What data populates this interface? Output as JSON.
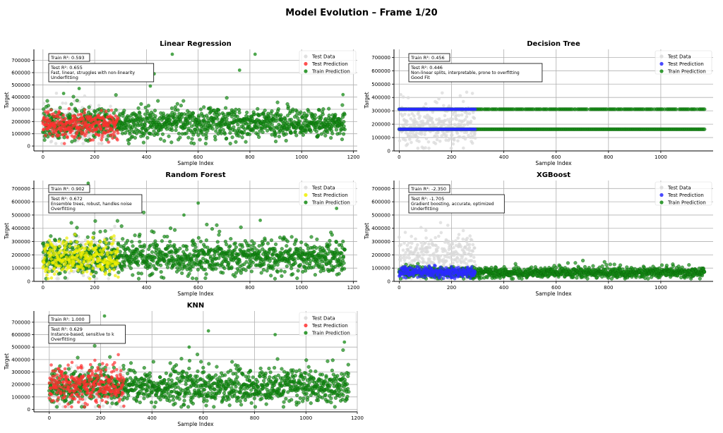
{
  "figure": {
    "title": "Model Evolution – Frame 1/20"
  },
  "colors": {
    "test_data": "#d9d9d9",
    "train_prediction": "#138a13",
    "grid": "#b0b0b0",
    "axis": "#000000"
  },
  "chart_data": [
    {
      "type": "scatter",
      "title": "Linear Regression",
      "xlabel": "Sample Index",
      "ylabel": "Target",
      "xlim": [
        -35,
        1215
      ],
      "ylim": [
        -40000,
        790000
      ],
      "xticks": [
        0,
        200,
        400,
        600,
        800,
        1000,
        1200
      ],
      "yticks": [
        0,
        100000,
        200000,
        300000,
        400000,
        500000,
        600000,
        700000
      ],
      "grid": true,
      "legend_position": "top-right",
      "test_prediction_color": "#ff3030",
      "legend": [
        "Test Data",
        "Test Prediction",
        "Train Prediction"
      ],
      "annotations": {
        "train_r2": "Train R²: 0.593",
        "test_r2": "Test R²: 0.655",
        "description": "Fast, linear, struggles with non-linearity",
        "status": "Underfitting"
      },
      "series_summary": {
        "test_data": {
          "n_samples": 292,
          "x_range": [
            0,
            291
          ],
          "center": 170000,
          "spread": 70000
        },
        "test_prediction": {
          "n_samples": 292,
          "x_range": [
            0,
            291
          ],
          "center": 170000,
          "spread": 55000
        },
        "train_prediction": {
          "n_samples": 1168,
          "x_range": [
            0,
            1167
          ],
          "center": 180000,
          "spread": 60000
        }
      },
      "highlight_points": [
        [
          80,
          430000
        ],
        [
          140,
          470000
        ],
        [
          430,
          590000
        ],
        [
          500,
          750000
        ],
        [
          760,
          620000
        ],
        [
          820,
          750000
        ],
        [
          1160,
          420000
        ],
        [
          415,
          490000
        ]
      ]
    },
    {
      "type": "scatter",
      "title": "Decision Tree",
      "xlabel": "Sample Index",
      "ylabel": "Target",
      "xlim": [
        -20,
        1200
      ],
      "ylim": [
        0,
        760000
      ],
      "xticks": [
        0,
        200,
        400,
        600,
        800,
        1000
      ],
      "yticks": [
        0,
        100000,
        200000,
        300000,
        400000,
        500000,
        600000,
        700000
      ],
      "grid": true,
      "legend_position": "top-right",
      "test_prediction_color": "#2a2aff",
      "legend": [
        "Test Data",
        "Test Prediction",
        "Train Prediction"
      ],
      "annotations": {
        "train_r2": "Train R²: 0.456",
        "test_r2": "Test R²: 0.446",
        "description": "Non-linear splits, interpretable, prone to overfitting",
        "status": "Good Fit"
      },
      "series_summary": {
        "test_data": {
          "n_samples": 292,
          "x_range": [
            0,
            291
          ],
          "center": 175000,
          "spread": 70000
        },
        "test_prediction": {
          "levels": [
            162000,
            312000
          ],
          "x_range": [
            0,
            291
          ]
        },
        "train_prediction": {
          "levels": [
            162000,
            312000
          ],
          "x_range": [
            0,
            1167
          ]
        }
      }
    },
    {
      "type": "scatter",
      "title": "Random Forest",
      "xlabel": "Sample Index",
      "ylabel": "Target",
      "xlim": [
        -35,
        1215
      ],
      "ylim": [
        0,
        760000
      ],
      "xticks": [
        0,
        200,
        400,
        600,
        800,
        1000,
        1200
      ],
      "yticks": [
        0,
        100000,
        200000,
        300000,
        400000,
        500000,
        600000,
        700000
      ],
      "grid": true,
      "legend_position": "top-right",
      "test_prediction_color": "#eeee00",
      "legend": [
        "Test Data",
        "Test Prediction",
        "Train Prediction"
      ],
      "annotations": {
        "train_r2": "Train R²: 0.902",
        "test_r2": "Test R²: 0.672",
        "description": "Ensemble trees, robust, handles noise",
        "status": "Overfitting"
      },
      "series_summary": {
        "test_data": {
          "n_samples": 292,
          "x_range": [
            0,
            291
          ],
          "center": 175000,
          "spread": 70000
        },
        "test_prediction": {
          "n_samples": 292,
          "x_range": [
            0,
            291
          ],
          "center": 180000,
          "spread": 65000
        },
        "train_prediction": {
          "n_samples": 1168,
          "x_range": [
            0,
            1167
          ],
          "center": 180000,
          "spread": 65000
        }
      },
      "highlight_points": [
        [
          175,
          740000
        ],
        [
          600,
          590000
        ],
        [
          545,
          500000
        ],
        [
          1135,
          550000
        ],
        [
          840,
          460000
        ]
      ]
    },
    {
      "type": "scatter",
      "title": "XGBoost",
      "xlabel": "Sample Index",
      "ylabel": "Target",
      "xlim": [
        -20,
        1200
      ],
      "ylim": [
        0,
        760000
      ],
      "xticks": [
        0,
        200,
        400,
        600,
        800,
        1000
      ],
      "yticks": [
        0,
        100000,
        200000,
        300000,
        400000,
        500000,
        600000,
        700000
      ],
      "grid": true,
      "legend_position": "top-right",
      "test_prediction_color": "#2a2aff",
      "legend": [
        "Test Data",
        "Test Prediction",
        "Train Prediction"
      ],
      "annotations": {
        "train_r2": "Train R²: -2.350",
        "test_r2": "Test R²: -1.705",
        "description": "Gradient boosting, accurate, optimized",
        "status": "Underfitting"
      },
      "series_summary": {
        "test_data": {
          "n_samples": 292,
          "x_range": [
            0,
            291
          ],
          "center": 185000,
          "spread": 80000
        },
        "test_prediction": {
          "n_samples": 292,
          "x_range": [
            0,
            291
          ],
          "center": 70000,
          "spread": 20000
        },
        "train_prediction": {
          "n_samples": 1168,
          "x_range": [
            0,
            1167
          ],
          "center": 65000,
          "spread": 20000
        }
      }
    },
    {
      "type": "scatter",
      "title": "KNN",
      "xlabel": "Sample Index",
      "ylabel": "Target",
      "xlim": [
        -60,
        1200
      ],
      "ylim": [
        -20000,
        790000
      ],
      "xticks": [
        0,
        200,
        400,
        600,
        800,
        1000,
        1200
      ],
      "yticks": [
        0,
        100000,
        200000,
        300000,
        400000,
        500000,
        600000,
        700000
      ],
      "grid": true,
      "legend_position": "top-right",
      "test_prediction_color": "#ff3030",
      "legend": [
        "Test Data",
        "Test Prediction",
        "Train Prediction"
      ],
      "annotations": {
        "train_r2": "Train R²: 1.000",
        "test_r2": "Test R²: 0.629",
        "description": "Instance-based, sensitive to k",
        "status": "Overfitting"
      },
      "series_summary": {
        "test_data": {
          "n_samples": 292,
          "x_range": [
            0,
            291
          ],
          "center": 175000,
          "spread": 70000
        },
        "test_prediction": {
          "n_samples": 292,
          "x_range": [
            0,
            291
          ],
          "center": 190000,
          "spread": 80000
        },
        "train_prediction": {
          "n_samples": 1168,
          "x_range": [
            0,
            1167
          ],
          "center": 180000,
          "spread": 70000
        }
      },
      "highlight_points": [
        [
          215,
          750000
        ],
        [
          620,
          630000
        ],
        [
          880,
          600000
        ],
        [
          545,
          500000
        ],
        [
          1150,
          540000
        ]
      ]
    }
  ]
}
